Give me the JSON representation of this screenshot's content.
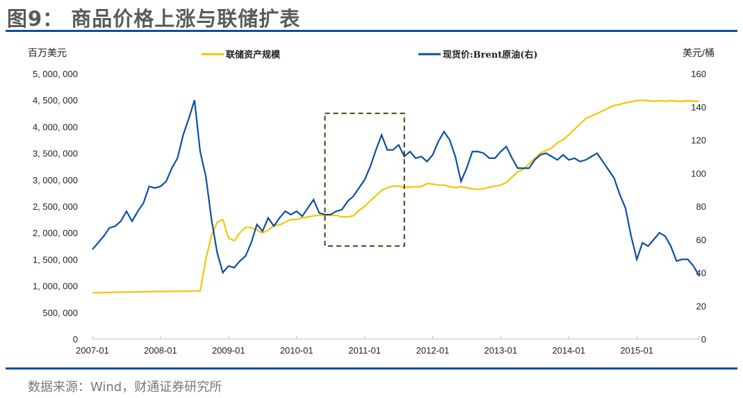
{
  "header": {
    "title": "图9： 商品价格上涨与联储扩表"
  },
  "footer": {
    "source": "数据来源：Wind，财通证券研究所"
  },
  "colors": {
    "fed": "#F5C400",
    "brent": "#0B4EA2",
    "rule": "#0B4EA2",
    "annotation_box": "#4a3a10"
  },
  "chart_data": {
    "type": "line",
    "title": "",
    "ylabel_left": "百万美元",
    "ylabel_right": "美元/桶",
    "ylim_left": [
      0,
      5000000
    ],
    "ylim_right": [
      0,
      160
    ],
    "xlim": [
      "2007-01",
      "2015-12"
    ],
    "grid": false,
    "legend_placement": "top",
    "x_ticks": [
      "2007-01",
      "2008-01",
      "2009-01",
      "2010-01",
      "2011-01",
      "2012-01",
      "2013-01",
      "2014-01",
      "2015-01"
    ],
    "y_ticks_left": [
      "0",
      "500,000",
      "1,000,000",
      "1,500,000",
      "2,000,000",
      "2,500,000",
      "3,000,000",
      "3,500,000",
      "4,000,000",
      "4,500,000",
      "5,000,000"
    ],
    "y_ticks_right": [
      "0",
      "20",
      "40",
      "60",
      "80",
      "100",
      "120",
      "140",
      "160"
    ],
    "start": "2007-01",
    "frequency": "monthly",
    "series": [
      {
        "name": "联储资产规模",
        "axis": "left",
        "values": [
          870000,
          872000,
          875000,
          878000,
          880000,
          882000,
          885000,
          885000,
          887000,
          890000,
          892000,
          895000,
          895000,
          895000,
          897000,
          898000,
          900000,
          900000,
          902000,
          905000,
          1500000,
          1950000,
          2200000,
          2250000,
          1900000,
          1850000,
          2000000,
          2100000,
          2100000,
          2050000,
          2000000,
          2050000,
          2150000,
          2150000,
          2200000,
          2250000,
          2250000,
          2280000,
          2300000,
          2320000,
          2330000,
          2330000,
          2330000,
          2330000,
          2300000,
          2300000,
          2320000,
          2420000,
          2500000,
          2600000,
          2700000,
          2800000,
          2850000,
          2880000,
          2880000,
          2860000,
          2860000,
          2870000,
          2870000,
          2930000,
          2920000,
          2900000,
          2900000,
          2870000,
          2850000,
          2870000,
          2850000,
          2830000,
          2820000,
          2830000,
          2860000,
          2880000,
          2900000,
          2950000,
          3050000,
          3150000,
          3200000,
          3300000,
          3400000,
          3500000,
          3550000,
          3600000,
          3700000,
          3750000,
          3850000,
          3950000,
          4050000,
          4150000,
          4200000,
          4250000,
          4300000,
          4350000,
          4400000,
          4420000,
          4450000,
          4470000,
          4490000,
          4500000,
          4490000,
          4480000,
          4490000,
          4480000,
          4490000,
          4480000,
          4480000,
          4490000,
          4480000,
          4480000
        ]
      },
      {
        "name": "现货价:Brent原油(右)",
        "axis": "right",
        "values": [
          54,
          58,
          62,
          67,
          68,
          71,
          77,
          71,
          77,
          82,
          92,
          91,
          92,
          95,
          103,
          109,
          123,
          133,
          144,
          113,
          98,
          72,
          52,
          40,
          44,
          43,
          47,
          50,
          58,
          69,
          65,
          73,
          68,
          73,
          77,
          75,
          77,
          74,
          79,
          84,
          76,
          75,
          75,
          77,
          78,
          83,
          86,
          91,
          96,
          104,
          114,
          123,
          114,
          114,
          117,
          110,
          113,
          109,
          110,
          107,
          111,
          119,
          125,
          120,
          110,
          95,
          103,
          113,
          113,
          112,
          109,
          109,
          113,
          116,
          109,
          103,
          103,
          103,
          108,
          111,
          112,
          110,
          108,
          111,
          108,
          109,
          107,
          108,
          110,
          112,
          107,
          102,
          97,
          87,
          79,
          62,
          48,
          58,
          56,
          60,
          64,
          62,
          56,
          47,
          48,
          48,
          44,
          38
        ]
      }
    ],
    "annotations": [
      {
        "type": "dashed-box",
        "axis": "right",
        "x": [
          "2010-06",
          "2011-08"
        ],
        "y": [
          56,
          136
        ]
      }
    ]
  }
}
